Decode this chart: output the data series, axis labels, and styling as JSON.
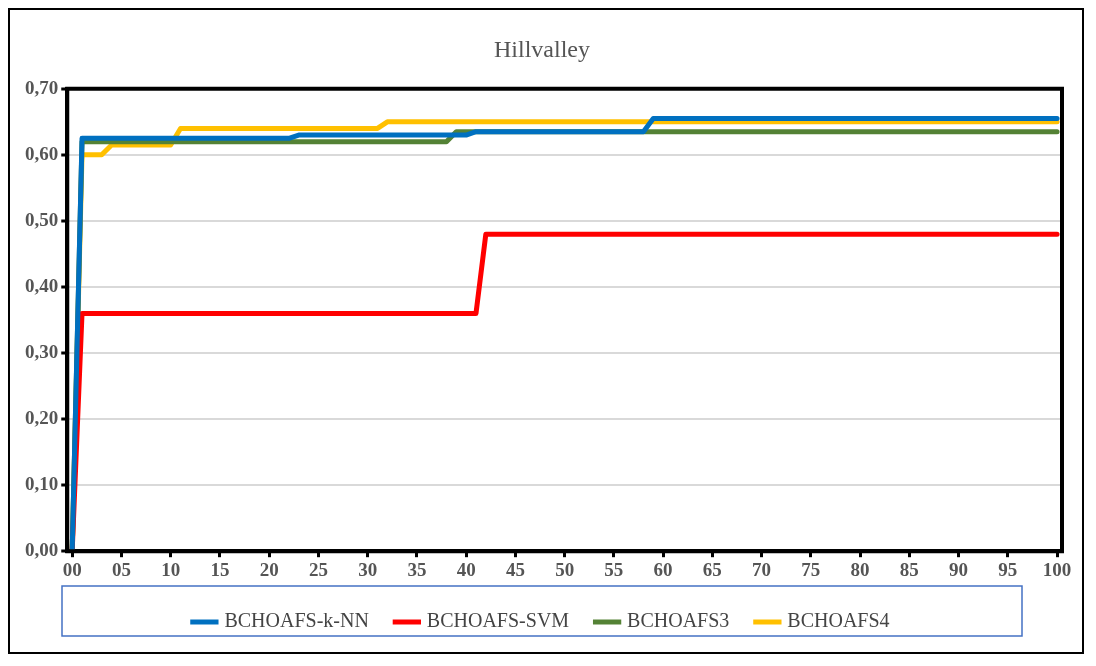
{
  "chart_data": {
    "type": "line",
    "title": "Hillvalley",
    "xlim": [
      -0.5,
      100.5
    ],
    "xticks": [
      {
        "value": 0,
        "label": "00"
      },
      {
        "value": 5,
        "label": "05"
      },
      10,
      15,
      20,
      25,
      30,
      35,
      40,
      45,
      50,
      55,
      60,
      65,
      70,
      75,
      80,
      85,
      90,
      95,
      100
    ],
    "ylim": [
      0,
      0.7
    ],
    "yticks": [
      {
        "value": 0,
        "label": "0,00"
      },
      {
        "value": 0.1,
        "label": "0,10"
      },
      {
        "value": 0.2,
        "label": "0,20"
      },
      {
        "value": 0.3,
        "label": "0,30"
      },
      {
        "value": 0.4,
        "label": "0,40"
      },
      {
        "value": 0.5,
        "label": "0,50"
      },
      {
        "value": 0.6,
        "label": "0,60"
      },
      {
        "value": 0.7,
        "label": "0,70"
      }
    ],
    "grid": "y",
    "legend": "bottom",
    "marker": "none",
    "line_style": "solid",
    "series": [
      {
        "name": "BCHOAFS-k-NN",
        "color": "#0070c0",
        "x": [
          0,
          1,
          22,
          23,
          40,
          41,
          58,
          59,
          100
        ],
        "values": [
          0,
          0.625,
          0.625,
          0.63,
          0.63,
          0.635,
          0.635,
          0.655,
          0.655
        ]
      },
      {
        "name": "BCHOAFS-SVM",
        "color": "#ff0000",
        "x": [
          0,
          1,
          41,
          42,
          100
        ],
        "values": [
          0,
          0.36,
          0.36,
          0.48,
          0.48
        ]
      },
      {
        "name": "BCHOAFS3",
        "color": "#548235",
        "x": [
          0,
          1,
          38,
          39,
          100
        ],
        "values": [
          0,
          0.62,
          0.62,
          0.635,
          0.635
        ]
      },
      {
        "name": "BCHOAFS4",
        "color": "#ffc000",
        "x": [
          0,
          1,
          3,
          4,
          10,
          11,
          31,
          32,
          100
        ],
        "values": [
          0,
          0.6,
          0.6,
          0.615,
          0.615,
          0.64,
          0.64,
          0.65,
          0.65
        ]
      }
    ]
  }
}
